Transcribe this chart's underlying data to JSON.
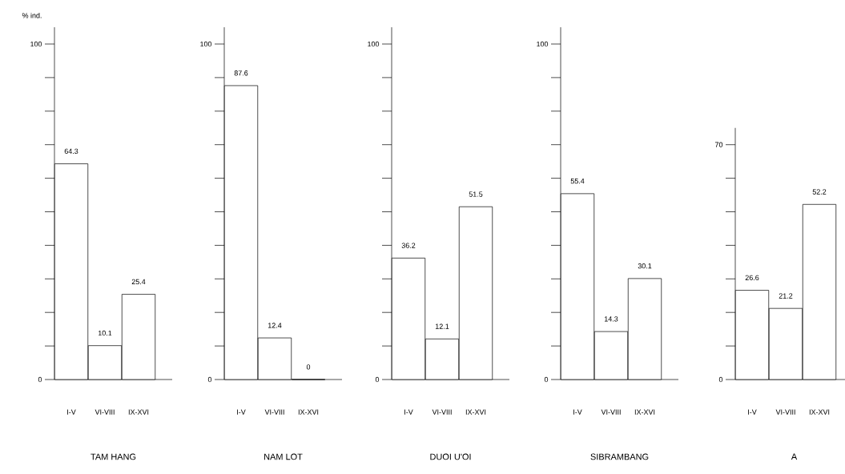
{
  "chart_data": [
    {
      "type": "bar",
      "title": "TAM HANG",
      "ylabel": "% ind.",
      "categories": [
        "I-V",
        "VI-VIII",
        "IX-XVI"
      ],
      "values": [
        64.3,
        10.1,
        25.4
      ],
      "color": "#ffffff",
      "data_labels": true,
      "ylim": [
        0,
        105
      ],
      "yticks": [
        0,
        {
          "value": 10,
          "label": null
        },
        {
          "value": 20,
          "label": null
        },
        {
          "value": 30,
          "label": null
        },
        {
          "value": 40,
          "label": null
        },
        {
          "value": 50,
          "label": null
        },
        {
          "value": 60,
          "label": null
        },
        {
          "value": 70,
          "label": null
        },
        {
          "value": 80,
          "label": null
        },
        {
          "value": 90,
          "label": null
        },
        100
      ]
    },
    {
      "type": "bar",
      "title": "NAM LOT",
      "categories": [
        "I-V",
        "VI-VIII",
        "IX-XVI"
      ],
      "values": [
        87.6,
        12.4,
        0
      ],
      "color": "#ffffff",
      "data_labels": true,
      "ylim": [
        0,
        105
      ],
      "yticks": [
        0,
        {
          "value": 10,
          "label": null
        },
        {
          "value": 20,
          "label": null
        },
        {
          "value": 30,
          "label": null
        },
        {
          "value": 40,
          "label": null
        },
        {
          "value": 50,
          "label": null
        },
        {
          "value": 60,
          "label": null
        },
        {
          "value": 70,
          "label": null
        },
        {
          "value": 80,
          "label": null
        },
        {
          "value": 90,
          "label": null
        },
        100
      ]
    },
    {
      "type": "bar",
      "title": "DUOI U'OI",
      "categories": [
        "I-V",
        "VI-VIII",
        "IX-XVI"
      ],
      "values": [
        36.2,
        12.1,
        51.5
      ],
      "color": "#ffffff",
      "data_labels": true,
      "ylim": [
        0,
        105
      ],
      "yticks": [
        0,
        {
          "value": 10,
          "label": null
        },
        {
          "value": 20,
          "label": null
        },
        {
          "value": 30,
          "label": null
        },
        {
          "value": 40,
          "label": null
        },
        {
          "value": 50,
          "label": null
        },
        {
          "value": 60,
          "label": null
        },
        {
          "value": 70,
          "label": null
        },
        {
          "value": 80,
          "label": null
        },
        {
          "value": 90,
          "label": null
        },
        100
      ]
    },
    {
      "type": "bar",
      "title": "SIBRAMBANG",
      "categories": [
        "I-V",
        "VI-VIII",
        "IX-XVI"
      ],
      "values": [
        55.4,
        14.3,
        30.1
      ],
      "color": "#ffffff",
      "data_labels": true,
      "ylim": [
        0,
        105
      ],
      "yticks": [
        0,
        {
          "value": 10,
          "label": null
        },
        {
          "value": 20,
          "label": null
        },
        {
          "value": 30,
          "label": null
        },
        {
          "value": 40,
          "label": null
        },
        {
          "value": 50,
          "label": null
        },
        {
          "value": 60,
          "label": null
        },
        {
          "value": 70,
          "label": null
        },
        {
          "value": 80,
          "label": null
        },
        {
          "value": 90,
          "label": null
        },
        100
      ]
    },
    {
      "type": "bar",
      "title": "A",
      "categories": [
        "I-V",
        "VI-VIII",
        "IX-XVI"
      ],
      "values": [
        26.6,
        21.2,
        52.2
      ],
      "color": "#ffffff",
      "data_labels": true,
      "ylim": [
        0,
        75
      ],
      "yticks": [
        0,
        {
          "value": 10,
          "label": null
        },
        {
          "value": 20,
          "label": null
        },
        {
          "value": 30,
          "label": null
        },
        {
          "value": 40,
          "label": null
        },
        {
          "value": 50,
          "label": null
        },
        {
          "value": 60,
          "label": null
        },
        70
      ]
    }
  ]
}
